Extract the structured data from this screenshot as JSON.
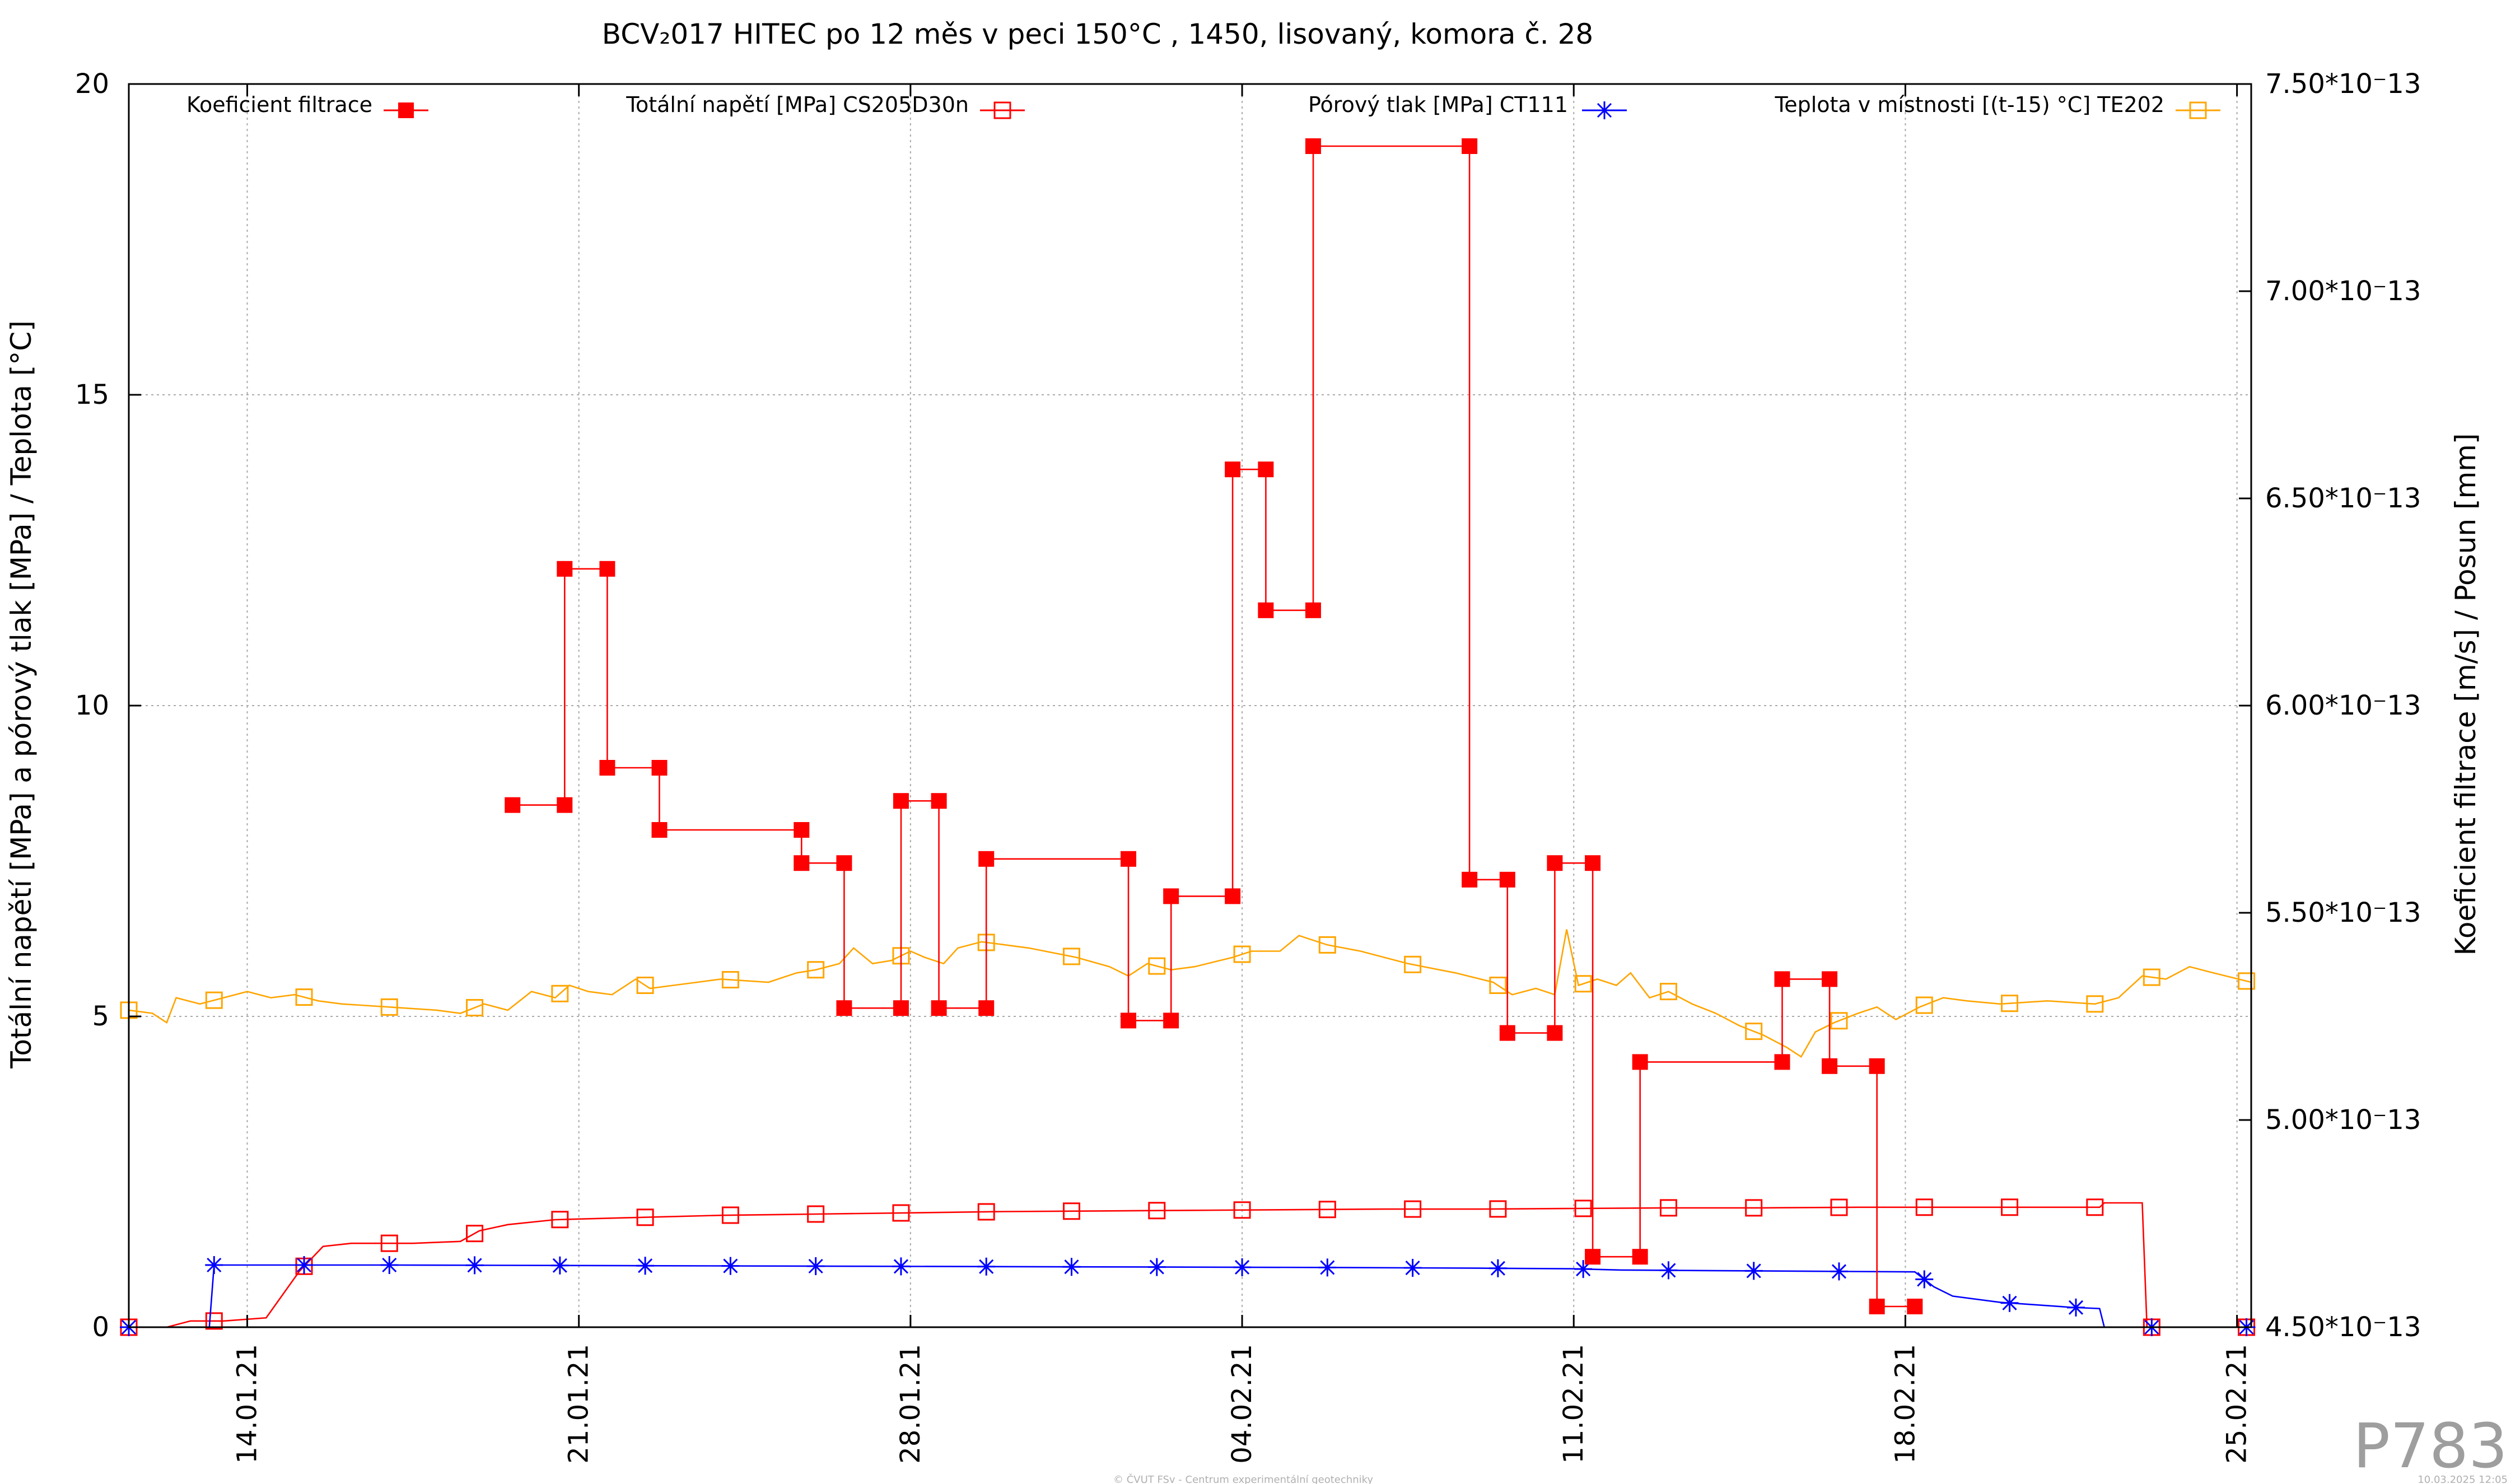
{
  "chart_data": {
    "type": "line",
    "title": "BCV₂017 HITEC po 12 měs v peci 150°C , 1450, lisovaný, komora č. 28",
    "ylabel_left": "Totální napětí [MPa] a pórový tlak [MPa] / Teplota [°C]",
    "ylabel_right": "Koeficient filtrace [m/s] / Posun [mm]",
    "x_ticks": [
      "14.01.21",
      "21.01.21",
      "28.01.21",
      "04.02.21",
      "11.02.21",
      "18.02.21",
      "25.02.21"
    ],
    "x_tick_days": [
      2,
      9,
      16,
      23,
      30,
      37,
      44
    ],
    "xlim_days": [
      -0.5,
      44.3
    ],
    "x_start_date": "2021-01-12",
    "ylim_left": [
      0,
      20
    ],
    "yticks_left": [
      "0",
      "5",
      "10",
      "15",
      "20"
    ],
    "ylim_right": [
      4.5e-13,
      7.5e-13
    ],
    "yticks_right": [
      "4.50*10⁻13",
      "5.00*10⁻13",
      "5.50*10⁻13",
      "6.00*10⁻13",
      "6.50*10⁻13",
      "7.00*10⁻13",
      "7.50*10⁻13"
    ],
    "grid": true,
    "legend_position": "top",
    "series": [
      {
        "name": "Koeficient filtrace",
        "axis": "right",
        "color": "#ff0000",
        "marker": "filled-square",
        "step": true,
        "points": [
          [
            7.6,
            5.76e-13
          ],
          [
            8.7,
            5.76e-13
          ],
          [
            8.7,
            6.33e-13
          ],
          [
            9.6,
            6.33e-13
          ],
          [
            9.6,
            5.85e-13
          ],
          [
            10.7,
            5.85e-13
          ],
          [
            10.7,
            5.7e-13
          ],
          [
            13.7,
            5.7e-13
          ],
          [
            13.7,
            5.62e-13
          ],
          [
            14.6,
            5.62e-13
          ],
          [
            14.6,
            5.27e-13
          ],
          [
            15.8,
            5.27e-13
          ],
          [
            15.8,
            5.77e-13
          ],
          [
            16.6,
            5.77e-13
          ],
          [
            16.6,
            5.27e-13
          ],
          [
            17.6,
            5.27e-13
          ],
          [
            17.6,
            5.63e-13
          ],
          [
            20.6,
            5.63e-13
          ],
          [
            20.6,
            5.24e-13
          ],
          [
            21.5,
            5.24e-13
          ],
          [
            21.5,
            5.54e-13
          ],
          [
            22.8,
            5.54e-13
          ],
          [
            22.8,
            6.57e-13
          ],
          [
            23.5,
            6.57e-13
          ],
          [
            23.5,
            6.23e-13
          ],
          [
            24.5,
            6.23e-13
          ],
          [
            24.5,
            7.35e-13
          ],
          [
            27.8,
            7.35e-13
          ],
          [
            27.8,
            5.58e-13
          ],
          [
            28.6,
            5.58e-13
          ],
          [
            28.6,
            5.21e-13
          ],
          [
            29.6,
            5.21e-13
          ],
          [
            29.6,
            5.62e-13
          ],
          [
            30.4,
            5.62e-13
          ],
          [
            30.4,
            4.67e-13
          ],
          [
            31.4,
            4.67e-13
          ],
          [
            31.4,
            5.14e-13
          ],
          [
            34.4,
            5.14e-13
          ],
          [
            34.4,
            5.34e-13
          ],
          [
            35.4,
            5.34e-13
          ],
          [
            35.4,
            5.13e-13
          ],
          [
            36.4,
            5.13e-13
          ],
          [
            36.4,
            4.55e-13
          ],
          [
            37.2,
            4.55e-13
          ]
        ]
      },
      {
        "name": "Totální napětí [MPa] CS205D30n",
        "axis": "left",
        "color": "#ff0000",
        "marker": "open-square",
        "points": [
          [
            -0.5,
            0.0
          ],
          [
            0.3,
            0.0
          ],
          [
            0.8,
            0.1
          ],
          [
            1.5,
            0.1
          ],
          [
            2.4,
            0.15
          ],
          [
            3.1,
            0.9
          ],
          [
            3.6,
            1.3
          ],
          [
            4.2,
            1.35
          ],
          [
            5.5,
            1.35
          ],
          [
            6.5,
            1.38
          ],
          [
            6.9,
            1.55
          ],
          [
            7.5,
            1.65
          ],
          [
            8.5,
            1.73
          ],
          [
            10.0,
            1.76
          ],
          [
            12.0,
            1.8
          ],
          [
            14.0,
            1.82
          ],
          [
            16.0,
            1.84
          ],
          [
            18.0,
            1.86
          ],
          [
            20.0,
            1.87
          ],
          [
            22.0,
            1.88
          ],
          [
            24.0,
            1.89
          ],
          [
            26.0,
            1.9
          ],
          [
            28.0,
            1.9
          ],
          [
            30.0,
            1.91
          ],
          [
            32.0,
            1.92
          ],
          [
            34.0,
            1.92
          ],
          [
            36.0,
            1.93
          ],
          [
            38.0,
            1.93
          ],
          [
            40.0,
            1.93
          ],
          [
            41.1,
            1.93
          ],
          [
            41.2,
            2.0
          ],
          [
            42.0,
            2.0
          ],
          [
            42.1,
            0.0
          ],
          [
            44.3,
            0.0
          ]
        ],
        "marker_days": [
          -0.5,
          1.3,
          3.2,
          5.0,
          6.8,
          8.6,
          10.4,
          12.2,
          14.0,
          15.8,
          17.6,
          19.4,
          21.2,
          23.0,
          24.8,
          26.6,
          28.4,
          30.2,
          32.0,
          33.8,
          35.6,
          37.4,
          39.2,
          41.0,
          42.2,
          44.2
        ]
      },
      {
        "name": "Pórový tlak [MPa] CT111",
        "axis": "left",
        "color": "#0000ff",
        "marker": "star",
        "points": [
          [
            -0.5,
            0.0
          ],
          [
            1.2,
            0.0
          ],
          [
            1.3,
            1.0
          ],
          [
            5.0,
            1.0
          ],
          [
            10.0,
            0.99
          ],
          [
            15.0,
            0.98
          ],
          [
            20.0,
            0.97
          ],
          [
            25.0,
            0.96
          ],
          [
            28.0,
            0.95
          ],
          [
            30.0,
            0.94
          ],
          [
            31.0,
            0.92
          ],
          [
            35.0,
            0.9
          ],
          [
            37.2,
            0.89
          ],
          [
            37.6,
            0.65
          ],
          [
            38.0,
            0.5
          ],
          [
            39.0,
            0.4
          ],
          [
            40.5,
            0.32
          ],
          [
            41.1,
            0.3
          ],
          [
            41.2,
            0.0
          ],
          [
            44.3,
            0.0
          ]
        ],
        "marker_days": [
          -0.5,
          1.3,
          3.2,
          5.0,
          6.8,
          8.6,
          10.4,
          12.2,
          14.0,
          15.8,
          17.6,
          19.4,
          21.2,
          23.0,
          24.8,
          26.6,
          28.4,
          30.2,
          32.0,
          33.8,
          35.6,
          37.4,
          39.2,
          40.6,
          42.2,
          44.2
        ]
      },
      {
        "name": "Teplota v místnosti [(t-15) °C] TE202",
        "axis": "left",
        "color": "#ffa500",
        "marker": "open-square",
        "points": [
          [
            -0.5,
            5.1
          ],
          [
            0.0,
            5.05
          ],
          [
            0.3,
            4.9
          ],
          [
            0.5,
            5.3
          ],
          [
            1.0,
            5.2
          ],
          [
            1.5,
            5.3
          ],
          [
            2.0,
            5.4
          ],
          [
            2.5,
            5.3
          ],
          [
            3.0,
            5.35
          ],
          [
            3.5,
            5.25
          ],
          [
            4.0,
            5.2
          ],
          [
            5.0,
            5.15
          ],
          [
            6.0,
            5.1
          ],
          [
            6.5,
            5.05
          ],
          [
            7.0,
            5.2
          ],
          [
            7.5,
            5.1
          ],
          [
            8.0,
            5.4
          ],
          [
            8.5,
            5.3
          ],
          [
            8.8,
            5.5
          ],
          [
            9.2,
            5.4
          ],
          [
            9.7,
            5.35
          ],
          [
            10.2,
            5.6
          ],
          [
            10.5,
            5.45
          ],
          [
            11.0,
            5.5
          ],
          [
            11.5,
            5.55
          ],
          [
            12.0,
            5.6
          ],
          [
            13.0,
            5.55
          ],
          [
            13.6,
            5.7
          ],
          [
            14.0,
            5.75
          ],
          [
            14.5,
            5.85
          ],
          [
            14.8,
            6.1
          ],
          [
            15.2,
            5.85
          ],
          [
            15.6,
            5.9
          ],
          [
            16.0,
            6.05
          ],
          [
            16.3,
            5.95
          ],
          [
            16.7,
            5.85
          ],
          [
            17.0,
            6.1
          ],
          [
            17.5,
            6.2
          ],
          [
            18.5,
            6.1
          ],
          [
            19.5,
            5.95
          ],
          [
            20.2,
            5.8
          ],
          [
            20.6,
            5.65
          ],
          [
            21.0,
            5.85
          ],
          [
            21.5,
            5.75
          ],
          [
            22.0,
            5.8
          ],
          [
            22.8,
            5.95
          ],
          [
            23.2,
            6.05
          ],
          [
            23.8,
            6.05
          ],
          [
            24.2,
            6.3
          ],
          [
            24.8,
            6.15
          ],
          [
            25.5,
            6.05
          ],
          [
            26.5,
            5.85
          ],
          [
            27.5,
            5.7
          ],
          [
            28.3,
            5.55
          ],
          [
            28.7,
            5.35
          ],
          [
            29.2,
            5.45
          ],
          [
            29.6,
            5.35
          ],
          [
            29.85,
            6.4
          ],
          [
            30.1,
            5.5
          ],
          [
            30.5,
            5.6
          ],
          [
            30.9,
            5.5
          ],
          [
            31.2,
            5.7
          ],
          [
            31.6,
            5.3
          ],
          [
            32.0,
            5.4
          ],
          [
            32.5,
            5.2
          ],
          [
            33.0,
            5.05
          ],
          [
            33.5,
            4.85
          ],
          [
            34.0,
            4.7
          ],
          [
            34.5,
            4.5
          ],
          [
            34.8,
            4.35
          ],
          [
            35.1,
            4.75
          ],
          [
            35.5,
            4.9
          ],
          [
            36.0,
            5.05
          ],
          [
            36.4,
            5.15
          ],
          [
            36.8,
            4.95
          ],
          [
            37.3,
            5.15
          ],
          [
            37.8,
            5.3
          ],
          [
            38.3,
            5.25
          ],
          [
            39.0,
            5.2
          ],
          [
            40.0,
            5.25
          ],
          [
            41.0,
            5.2
          ],
          [
            41.5,
            5.3
          ],
          [
            42.0,
            5.65
          ],
          [
            42.5,
            5.6
          ],
          [
            43.0,
            5.8
          ],
          [
            43.5,
            5.7
          ],
          [
            44.3,
            5.55
          ]
        ],
        "marker_days": [
          -0.5,
          1.3,
          3.2,
          5.0,
          6.8,
          8.6,
          10.4,
          12.2,
          14.0,
          15.8,
          17.6,
          19.4,
          21.2,
          23.0,
          24.8,
          26.6,
          28.4,
          30.2,
          32.0,
          33.8,
          35.6,
          37.4,
          39.2,
          41.0,
          42.2,
          44.2
        ]
      }
    ]
  },
  "watermark": "P783",
  "footer_left": "© ČVUT FSv - Centrum experimentální geotechniky",
  "footer_right": "10.03.2025 12:05"
}
